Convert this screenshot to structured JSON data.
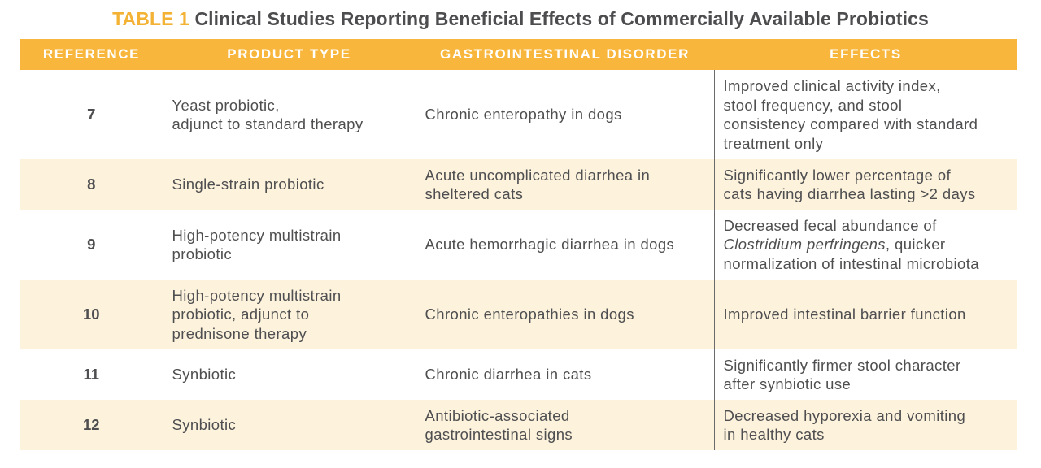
{
  "caption": {
    "label": "TABLE 1",
    "title": "Clinical Studies Reporting Beneficial Effects of Commercially Available Probiotics"
  },
  "colors": {
    "header_bg": "#f8b73c",
    "stripe_bg": "#fdf3dd",
    "caption_label": "#f3b234",
    "text": "#4f4f51"
  },
  "headers": {
    "reference": "REFERENCE",
    "product_type": "PRODUCT TYPE",
    "disorder": "GASTROINTESTINAL DISORDER",
    "effects": "EFFECTS"
  },
  "rows": [
    {
      "reference": "7",
      "product": [
        "Yeast probiotic,",
        "adjunct to standard therapy"
      ],
      "disorder": [
        "Chronic enteropathy in dogs"
      ],
      "effects": [
        "Improved clinical activity index,",
        "stool frequency, and stool",
        "consistency compared with standard",
        "treatment only"
      ]
    },
    {
      "reference": "8",
      "product": [
        "Single-strain probiotic"
      ],
      "disorder": [
        "Acute uncomplicated diarrhea in",
        "sheltered cats"
      ],
      "effects": [
        "Significantly lower percentage of",
        "cats having diarrhea lasting >2 days"
      ]
    },
    {
      "reference": "9",
      "product": [
        "High-potency multistrain",
        "probiotic"
      ],
      "disorder": [
        "Acute hemorrhagic diarrhea in dogs"
      ],
      "effects_line1": "Decreased fecal abundance of",
      "effects_italic": "Clostridium perfringens",
      "effects_after_italic": ", quicker",
      "effects_line3": "normalization of intestinal microbiota"
    },
    {
      "reference": "10",
      "product": [
        "High-potency multistrain",
        "probiotic, adjunct to",
        "prednisone therapy"
      ],
      "disorder": [
        "Chronic enteropathies in dogs"
      ],
      "effects": [
        "Improved intestinal barrier function"
      ]
    },
    {
      "reference": "11",
      "product": [
        "Synbiotic"
      ],
      "disorder": [
        "Chronic diarrhea in cats"
      ],
      "effects": [
        "Significantly firmer stool character",
        "after synbiotic use"
      ]
    },
    {
      "reference": "12",
      "product": [
        "Synbiotic"
      ],
      "disorder": [
        "Antibiotic-associated",
        "gastrointestinal signs"
      ],
      "effects": [
        "Decreased hyporexia and vomiting",
        "in healthy cats"
      ]
    }
  ]
}
